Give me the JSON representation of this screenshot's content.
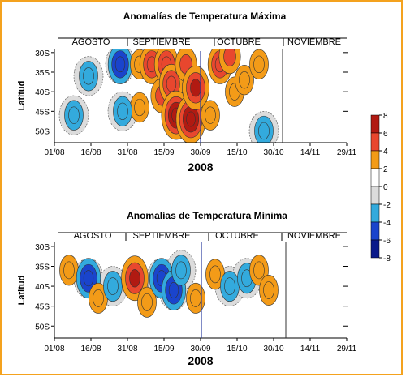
{
  "chart_data": [
    {
      "type": "heatmap",
      "title": "Anomalías de Temperatura Máxima",
      "xlabel": "2008",
      "ylabel": "Latitud",
      "months": [
        "AGOSTO",
        "SEPTIEMBRE",
        "OCTUBRE",
        "NOVIEMBRE"
      ],
      "x_ticks": [
        "01/08",
        "16/08",
        "31/08",
        "15/09",
        "30/09",
        "15/10",
        "30/10",
        "14/11",
        "29/11"
      ],
      "y_ticks": [
        "30S",
        "35S",
        "40S",
        "45S",
        "50S"
      ],
      "ylim": [
        -53,
        -29
      ],
      "x_day_range": [
        0,
        120
      ],
      "data_end_day": 92,
      "blobs": [
        {
          "day": 27,
          "lat": -33,
          "value": -5
        },
        {
          "day": 35,
          "lat": -33,
          "value": 3
        },
        {
          "day": 35,
          "lat": -44,
          "value": 3
        },
        {
          "day": 40,
          "lat": -33,
          "value": 5
        },
        {
          "day": 44,
          "lat": -41,
          "value": 4
        },
        {
          "day": 46,
          "lat": -33,
          "value": 5
        },
        {
          "day": 48,
          "lat": -38,
          "value": 5
        },
        {
          "day": 50,
          "lat": -46,
          "value": 7
        },
        {
          "day": 54,
          "lat": -33,
          "value": 4
        },
        {
          "day": 56,
          "lat": -47,
          "value": 7
        },
        {
          "day": 58,
          "lat": -39,
          "value": 6
        },
        {
          "day": 64,
          "lat": -46,
          "value": 3
        },
        {
          "day": 68,
          "lat": -33,
          "value": 5
        },
        {
          "day": 72,
          "lat": -31,
          "value": 4
        },
        {
          "day": 74,
          "lat": -40,
          "value": 3
        },
        {
          "day": 78,
          "lat": -37,
          "value": 3
        },
        {
          "day": 84,
          "lat": -33,
          "value": 3
        },
        {
          "day": 8,
          "lat": -46,
          "value": -3
        },
        {
          "day": 14,
          "lat": -36,
          "value": -3
        },
        {
          "day": 28,
          "lat": -45,
          "value": -3
        },
        {
          "day": 86,
          "lat": -50,
          "value": -3
        }
      ]
    },
    {
      "type": "heatmap",
      "title": "Anomalías de Temperatura Mínima",
      "xlabel": "2008",
      "ylabel": "Latitud",
      "months": [
        "AGOSTO",
        "SEPTIEMBRE",
        "OCTUBRE",
        "NOVIEMBRE"
      ],
      "x_ticks": [
        "01/08",
        "16/08",
        "31/08",
        "15/09",
        "30/09",
        "15/10",
        "30/10",
        "14/11",
        "29/11"
      ],
      "y_ticks": [
        "30S",
        "35S",
        "40S",
        "45S",
        "50S"
      ],
      "ylim": [
        -53,
        -29
      ],
      "x_day_range": [
        0,
        120
      ],
      "data_end_day": 92,
      "blobs": [
        {
          "day": 6,
          "lat": -36,
          "value": 3
        },
        {
          "day": 14,
          "lat": -38,
          "value": -5
        },
        {
          "day": 18,
          "lat": -43,
          "value": 3
        },
        {
          "day": 24,
          "lat": -40,
          "value": -3
        },
        {
          "day": 33,
          "lat": -38,
          "value": 6
        },
        {
          "day": 38,
          "lat": -44,
          "value": 3
        },
        {
          "day": 44,
          "lat": -38,
          "value": -5
        },
        {
          "day": 49,
          "lat": -41,
          "value": -5
        },
        {
          "day": 52,
          "lat": -36,
          "value": -3
        },
        {
          "day": 58,
          "lat": -43,
          "value": 3
        },
        {
          "day": 66,
          "lat": -37,
          "value": 3
        },
        {
          "day": 72,
          "lat": -40,
          "value": -3
        },
        {
          "day": 79,
          "lat": -38,
          "value": -3
        },
        {
          "day": 84,
          "lat": -36,
          "value": 3
        },
        {
          "day": 88,
          "lat": -41,
          "value": 3
        }
      ]
    }
  ],
  "colorbar": {
    "ticks": [
      "8",
      "6",
      "4",
      "2",
      "0",
      "-2",
      "-4",
      "-6",
      "-8"
    ],
    "levels": [
      {
        "from": 6,
        "to": 8,
        "color": "#b11a12"
      },
      {
        "from": 4,
        "to": 6,
        "color": "#e8472e"
      },
      {
        "from": 2,
        "to": 4,
        "color": "#f39b18"
      },
      {
        "from": 0,
        "to": 2,
        "color": "#ffffff"
      },
      {
        "from": -2,
        "to": 0,
        "color": "#dcdcdc"
      },
      {
        "from": -4,
        "to": -2,
        "color": "#33aadd"
      },
      {
        "from": -6,
        "to": -4,
        "color": "#1a44cc"
      },
      {
        "from": -8,
        "to": -6,
        "color": "#0a1a8a"
      }
    ]
  }
}
